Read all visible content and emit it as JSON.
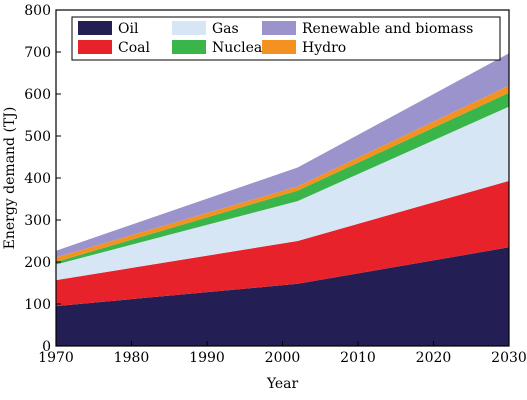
{
  "chart_data": {
    "type": "area",
    "stacked": true,
    "x": [
      1970,
      2002,
      2030
    ],
    "xlabel": "Year",
    "ylabel": "Energy demand (TJ)",
    "xlim": [
      1970,
      2030
    ],
    "ylim": [
      0,
      800
    ],
    "xticks": [
      "1970",
      "1980",
      "1990",
      "2000",
      "2010",
      "2020",
      "2030"
    ],
    "yticks": [
      "0",
      "100",
      "200",
      "300",
      "400",
      "500",
      "600",
      "700",
      "800"
    ],
    "grid": false,
    "legend_position": "top",
    "series": [
      {
        "name": "Oil",
        "color": "#231f55",
        "values": [
          95,
          148,
          235
        ]
      },
      {
        "name": "Coal",
        "color": "#e8222a",
        "values": [
          62,
          102,
          158
        ]
      },
      {
        "name": "Gas",
        "color": "#d7e6f5",
        "values": [
          37,
          95,
          177
        ]
      },
      {
        "name": "Nuclear",
        "color": "#3ab54a",
        "values": [
          6,
          25,
          33
        ]
      },
      {
        "name": "Hydro",
        "color": "#f39220",
        "values": [
          11,
          10,
          17
        ]
      },
      {
        "name": "Renewable and biomass",
        "color": "#9b94cc",
        "values": [
          16,
          45,
          77
        ]
      }
    ],
    "legend_order": [
      "Oil",
      "Gas",
      "Renewable and biomass",
      "Coal",
      "Nuclear",
      "Hydro"
    ]
  }
}
